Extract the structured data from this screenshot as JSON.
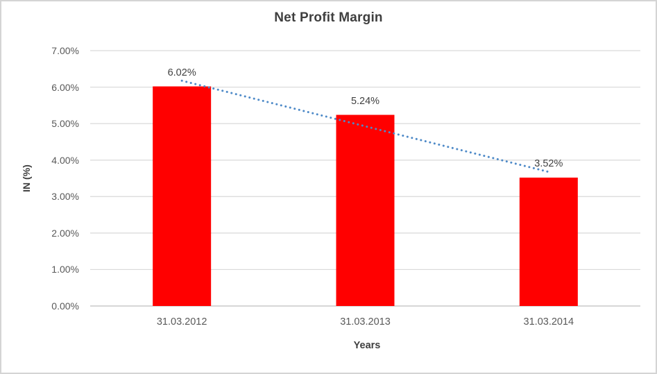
{
  "chart_data": {
    "type": "bar",
    "title": "Net Profit Margin",
    "xlabel": "Years",
    "ylabel": "IN (%)",
    "categories": [
      "31.03.2012",
      "31.03.2013",
      "31.03.2014"
    ],
    "values": [
      6.02,
      5.24,
      3.52
    ],
    "data_labels": [
      "6.02%",
      "5.24%",
      "3.52%"
    ],
    "ylim": [
      0,
      7
    ],
    "ytick_step": 1,
    "ytick_labels": [
      "0.00%",
      "1.00%",
      "2.00%",
      "3.00%",
      "4.00%",
      "5.00%",
      "6.00%",
      "7.00%"
    ],
    "grid": true,
    "legend": "none",
    "trendline": {
      "type": "linear",
      "style": "dotted"
    }
  },
  "colors": {
    "bar": "#ff0000",
    "trendline": "#4e8ac8",
    "gridline": "#d9d9d9",
    "axis_line": "#bfbfbf",
    "tick_text": "#595959",
    "label_text": "#404040",
    "title_text": "#3f3f3f",
    "frame_border": "#d4d4d4",
    "background": "#ffffff"
  }
}
